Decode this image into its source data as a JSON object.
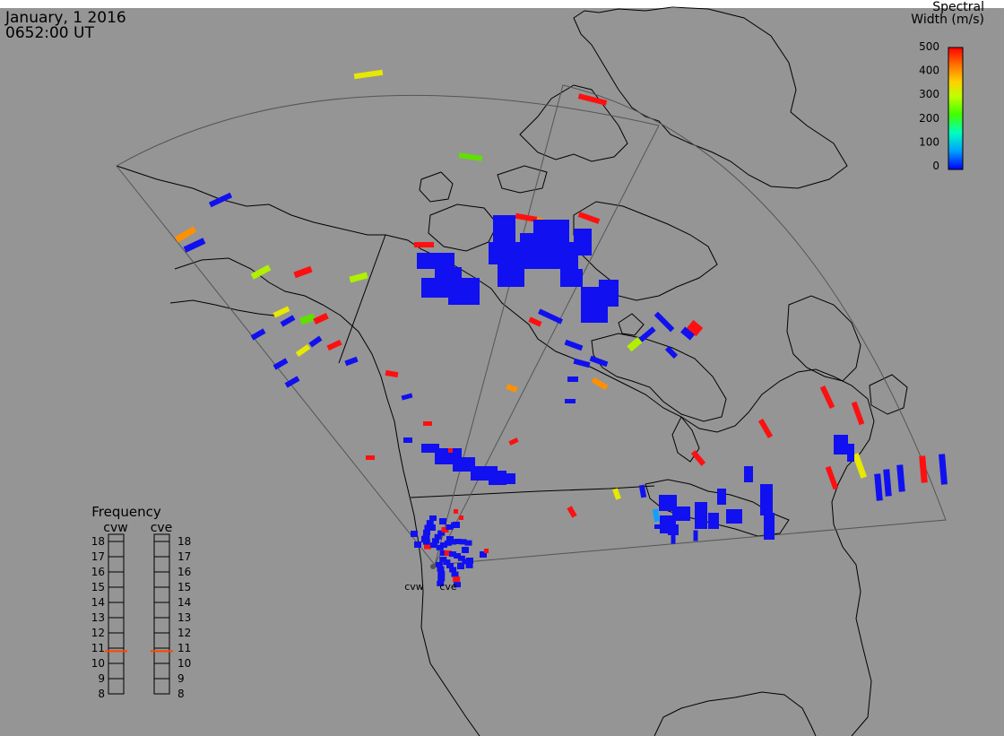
{
  "header": {
    "date": "January, 1 2016",
    "time": "0652:00 UT"
  },
  "colorbar": {
    "title_line1": "Spectral",
    "title_line2": "Width (m/s)",
    "ticks": [
      "500",
      "400",
      "300",
      "200",
      "100",
      "0"
    ],
    "stops": [
      "#0000ff",
      "#00a0ff",
      "#00ffc0",
      "#40ff00",
      "#c0ff00",
      "#ffd000",
      "#ff7000",
      "#ff0000"
    ]
  },
  "frequency": {
    "title": "Frequency",
    "radars": [
      "cvw",
      "cve"
    ],
    "scale": [
      "18",
      "17",
      "16",
      "15",
      "14",
      "13",
      "12",
      "11",
      "10",
      "9",
      "8"
    ],
    "values_mhz": [
      10.8,
      10.8
    ],
    "marker_color": "#ff4500"
  },
  "stations": [
    {
      "label": "cvw"
    },
    {
      "label": "cve"
    }
  ],
  "colors": {
    "background": "#959595",
    "coast": "#000000",
    "fov": "#444444"
  }
}
